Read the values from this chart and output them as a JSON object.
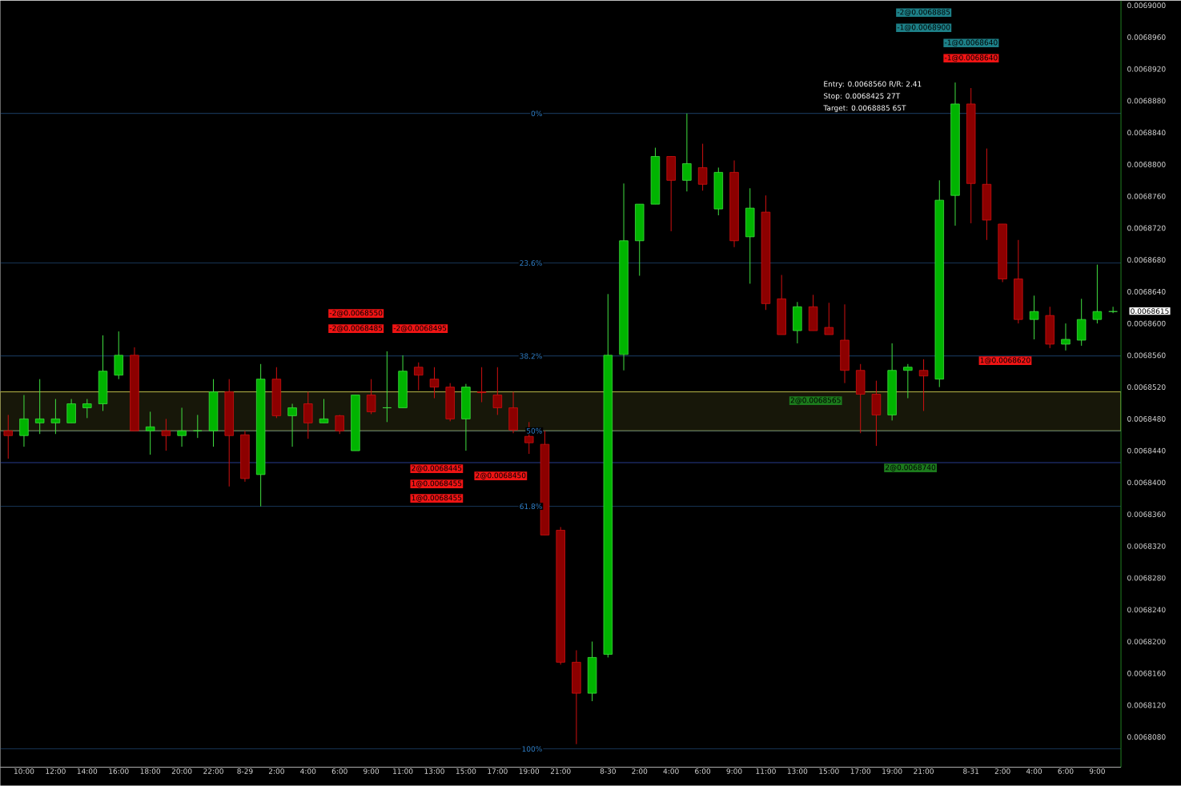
{
  "chart_data": {
    "type": "candlestick",
    "categories": [
      null,
      "10:00",
      null,
      "12:00",
      null,
      "14:00",
      null,
      "16:00",
      null,
      "18:00",
      null,
      "20:00",
      null,
      "22:00",
      null,
      "8-29",
      null,
      "2:00",
      null,
      "4:00",
      null,
      "6:00",
      null,
      "9:00",
      null,
      "11:00",
      null,
      "13:00",
      null,
      "15:00",
      null,
      "17:00",
      null,
      "19:00",
      null,
      "21:00",
      null,
      null,
      "8-30",
      null,
      "2:00",
      null,
      "4:00",
      null,
      "6:00",
      null,
      "9:00",
      null,
      "11:00",
      null,
      "13:00",
      null,
      "15:00",
      null,
      "17:00",
      null,
      "19:00",
      null,
      "21:00",
      null,
      null,
      "8-31",
      null,
      "2:00",
      null,
      "4:00",
      null,
      "6:00",
      null,
      "9:00",
      null
    ],
    "ohlc": [
      [
        0.0068465,
        0.0068485,
        0.006843,
        0.0068459
      ],
      [
        0.0068459,
        0.006851,
        0.0068445,
        0.006848
      ],
      [
        0.0068475,
        0.006853,
        0.0068461,
        0.006848
      ],
      [
        0.0068475,
        0.0068505,
        0.0068461,
        0.006848
      ],
      [
        0.0068475,
        0.0068505,
        0.0068475,
        0.0068499
      ],
      [
        0.0068494,
        0.0068505,
        0.0068481,
        0.0068499
      ],
      [
        0.0068499,
        0.0068585,
        0.006849,
        0.006854
      ],
      [
        0.0068535,
        0.006859,
        0.006853,
        0.006856
      ],
      [
        0.006856,
        0.006857,
        0.0068465,
        0.0068465
      ],
      [
        0.0068465,
        0.0068489,
        0.0068435,
        0.006847
      ],
      [
        0.0068465,
        0.006848,
        0.006844,
        0.0068459
      ],
      [
        0.0068459,
        0.0068494,
        0.0068445,
        0.0068465
      ],
      [
        0.0068465,
        0.0068485,
        0.0068456,
        0.0068465
      ],
      [
        0.0068465,
        0.006853,
        0.0068445,
        0.0068514
      ],
      [
        0.0068514,
        0.006853,
        0.0068395,
        0.0068459
      ],
      [
        0.006846,
        0.0068465,
        0.0068401,
        0.0068405
      ],
      [
        0.006841,
        0.0068549,
        0.006837,
        0.006853
      ],
      [
        0.006853,
        0.0068545,
        0.0068481,
        0.0068484
      ],
      [
        0.0068484,
        0.0068499,
        0.0068445,
        0.0068494
      ],
      [
        0.0068499,
        0.0068514,
        0.0068455,
        0.0068475
      ],
      [
        0.0068475,
        0.0068505,
        0.0068475,
        0.006848
      ],
      [
        0.0068484,
        0.0068485,
        0.0068461,
        0.0068465
      ],
      [
        0.006844,
        0.006851,
        0.006844,
        0.006851
      ],
      [
        0.006851,
        0.006853,
        0.0068486,
        0.0068489
      ],
      [
        0.0068494,
        0.0068565,
        0.0068476,
        0.0068494
      ],
      [
        0.0068494,
        0.006856,
        0.0068494,
        0.006854
      ],
      [
        0.0068545,
        0.0068551,
        0.0068516,
        0.0068535
      ],
      [
        0.006853,
        0.0068545,
        0.0068506,
        0.006852
      ],
      [
        0.006852,
        0.0068525,
        0.0068477,
        0.006848
      ],
      [
        0.006848,
        0.0068524,
        0.006844,
        0.006852
      ],
      [
        0.0068514,
        0.0068545,
        0.0068501,
        0.0068513
      ],
      [
        0.006851,
        0.0068545,
        0.0068485,
        0.0068494
      ],
      [
        0.0068494,
        0.0068514,
        0.0068462,
        0.0068466
      ],
      [
        0.0068458,
        0.0068476,
        0.0068436,
        0.006845
      ],
      [
        0.0068448,
        0.0068465,
        0.0068334,
        0.0068334
      ],
      [
        0.006834,
        0.0068344,
        0.0068171,
        0.0068174
      ],
      [
        0.0068174,
        0.0068189,
        0.0068071,
        0.0068135
      ],
      [
        0.0068135,
        0.00682,
        0.0068125,
        0.006818
      ],
      [
        0.0068184,
        0.0068637,
        0.006818,
        0.006856
      ],
      [
        0.0068561,
        0.0068776,
        0.0068541,
        0.0068704
      ],
      [
        0.0068704,
        0.006875,
        0.006866,
        0.006875
      ],
      [
        0.006875,
        0.0068821,
        0.006875,
        0.006881
      ],
      [
        0.006881,
        0.006881,
        0.0068716,
        0.006878
      ],
      [
        0.006878,
        0.0068864,
        0.0068766,
        0.0068801
      ],
      [
        0.0068796,
        0.0068826,
        0.0068767,
        0.0068775
      ],
      [
        0.0068744,
        0.0068796,
        0.0068736,
        0.006879
      ],
      [
        0.006879,
        0.0068805,
        0.0068696,
        0.0068704
      ],
      [
        0.0068709,
        0.006877,
        0.006865,
        0.0068745
      ],
      [
        0.006874,
        0.0068761,
        0.0068617,
        0.0068625
      ],
      [
        0.0068631,
        0.0068661,
        0.0068586,
        0.0068586
      ],
      [
        0.0068591,
        0.0068627,
        0.0068575,
        0.0068621
      ],
      [
        0.0068621,
        0.0068636,
        0.0068591,
        0.0068591
      ],
      [
        0.0068595,
        0.0068626,
        0.0068586,
        0.0068586
      ],
      [
        0.0068579,
        0.0068624,
        0.0068525,
        0.0068541
      ],
      [
        0.0068541,
        0.0068549,
        0.0068462,
        0.0068511
      ],
      [
        0.0068511,
        0.0068528,
        0.0068446,
        0.0068485
      ],
      [
        0.0068485,
        0.0068575,
        0.0068478,
        0.0068541
      ],
      [
        0.0068541,
        0.0068549,
        0.0068506,
        0.0068545
      ],
      [
        0.0068541,
        0.0068555,
        0.006849,
        0.0068534
      ],
      [
        0.006853,
        0.006878,
        0.006852,
        0.0068755
      ],
      [
        0.0068761,
        0.0068903,
        0.0068723,
        0.0068876
      ],
      [
        0.0068876,
        0.0068896,
        0.0068726,
        0.0068776
      ],
      [
        0.0068775,
        0.006882,
        0.0068705,
        0.006873
      ],
      [
        0.0068725,
        0.0068725,
        0.0068652,
        0.0068656
      ],
      [
        0.0068656,
        0.0068705,
        0.00686,
        0.0068605
      ],
      [
        0.0068605,
        0.0068635,
        0.006858,
        0.0068615
      ],
      [
        0.006861,
        0.0068621,
        0.0068569,
        0.0068574
      ],
      [
        0.0068574,
        0.00686,
        0.0068566,
        0.006858
      ],
      [
        0.0068579,
        0.0068631,
        0.0068572,
        0.0068605
      ],
      [
        0.0068605,
        0.0068674,
        0.00686,
        0.0068615
      ],
      [
        0.0068615,
        0.0068621,
        0.0068613,
        0.0068615
      ]
    ],
    "ylim": [
      0.0068042,
      0.0069006
    ],
    "yticks": [
      {
        "value": 0.006808,
        "label": "0.0068080"
      },
      {
        "value": 0.006812,
        "label": "0.0068120"
      },
      {
        "value": 0.006816,
        "label": "0.0068160"
      },
      {
        "value": 0.00682,
        "label": "0.0068200"
      },
      {
        "value": 0.006824,
        "label": "0.0068240"
      },
      {
        "value": 0.006828,
        "label": "0.0068280"
      },
      {
        "value": 0.006832,
        "label": "0.0068320"
      },
      {
        "value": 0.006836,
        "label": "0.0068360"
      },
      {
        "value": 0.00684,
        "label": "0.0068400"
      },
      {
        "value": 0.006844,
        "label": "0.0068440"
      },
      {
        "value": 0.006848,
        "label": "0.0068480"
      },
      {
        "value": 0.006852,
        "label": "0.0068520"
      },
      {
        "value": 0.006856,
        "label": "0.0068560"
      },
      {
        "value": 0.00686,
        "label": "0.0068600"
      },
      {
        "value": 0.006864,
        "label": "0.0068640"
      },
      {
        "value": 0.006868,
        "label": "0.0068680"
      },
      {
        "value": 0.006872,
        "label": "0.0068720"
      },
      {
        "value": 0.006876,
        "label": "0.0068760"
      },
      {
        "value": 0.00688,
        "label": "0.0068800"
      },
      {
        "value": 0.006884,
        "label": "0.0068840"
      },
      {
        "value": 0.006888,
        "label": "0.0068880"
      },
      {
        "value": 0.006892,
        "label": "0.0068920"
      },
      {
        "value": 0.006896,
        "label": "0.0068960"
      },
      {
        "value": 0.0069,
        "label": "0.0069000"
      }
    ],
    "ref_lines": [
      {
        "axis": "y",
        "value": 0.0068864,
        "color": "#2f6db0"
      },
      {
        "axis": "y",
        "value": 0.0068676,
        "color": "#2f6db0"
      },
      {
        "axis": "y",
        "value": 0.0068559,
        "color": "#2f6db0"
      },
      {
        "axis": "y",
        "value": 0.0068465,
        "color": "#2f6db0"
      },
      {
        "axis": "y",
        "value": 0.006837,
        "color": "#2f6db0"
      },
      {
        "axis": "y",
        "value": 0.0068065,
        "color": "#2f6db0"
      },
      {
        "axis": "y",
        "value": 0.0068425,
        "color": "#3a55c8"
      }
    ],
    "bands": [
      {
        "axis": "y",
        "from": 0.0068465,
        "to": 0.0068514,
        "color": "#e8e85a"
      }
    ],
    "annotations": [
      "-2@0.0068550",
      "-2@0.0068485",
      "-2@0.0068495",
      "2@0.0068445",
      "1@0.0068455",
      "1@0.0068455",
      "2@0.0068450",
      "2@0.0068565",
      "2@0.0068740",
      "-2@0.0068885",
      "-1@0.0068900",
      "-1@0.0068640",
      "-1@0.0068640",
      "1@0.0068620",
      "Entry: 0.0068560 R/R: 2.41",
      "Stop: 0.0068425 27T",
      "Target: 0.0068885 65T",
      "0.0068615",
      {
        "text": "0%",
        "y": 0.0068864
      },
      {
        "text": "23.6%",
        "y": 0.0068676
      },
      {
        "text": "38.2%",
        "y": 0.0068559
      },
      {
        "text": "50%",
        "y": 0.0068465
      },
      {
        "text": "61.8%",
        "y": 0.006837
      },
      {
        "text": "100%",
        "y": 0.0068065
      }
    ]
  }
}
